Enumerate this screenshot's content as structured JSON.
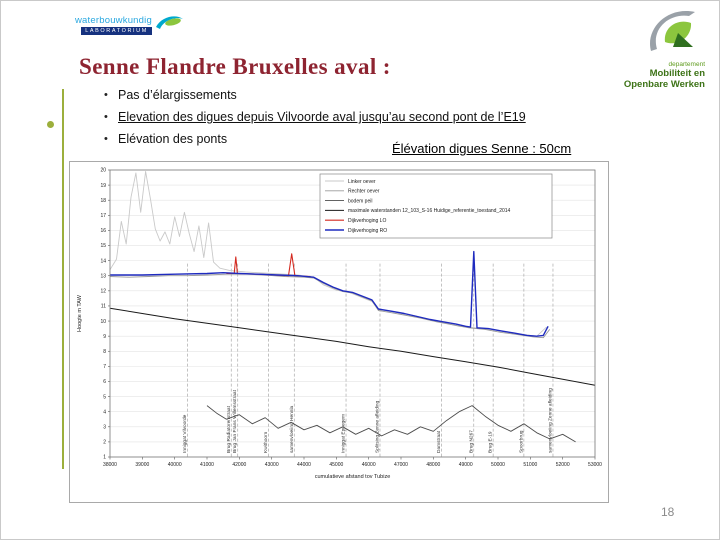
{
  "colors": {
    "title_color": "#8e2431",
    "accent_green": "#9caf3c",
    "logo_blue": "#29a8e0",
    "logo_navy": "#16327f",
    "mow_green": "#5f9b1e",
    "mow_green_dark": "#3d7317"
  },
  "logos": {
    "waterbouwkundig": {
      "line1": "waterbouwkundig",
      "line2": "LABORATORIUM"
    },
    "mow": {
      "line0": "departement",
      "line1": "Mobiliteit en",
      "line2": "Openbare Werken"
    }
  },
  "title": "Senne Flandre Bruxelles aval :",
  "bullets": [
    {
      "text": "Pas d’élargissements"
    },
    {
      "text": "Elevation des digues depuis Vilvoorde aval  jusqu’au second pont de l’E19"
    },
    {
      "text": "Elévation des ponts"
    }
  ],
  "chart_caption": "Élévation digues Senne : 50cm",
  "page_number": "18",
  "chart_data": {
    "type": "line",
    "title": "",
    "xlabel": "cumulatieve afstand tov Tubize",
    "ylabel": "Hoogte m TAW",
    "xlim": [
      38000,
      53000
    ],
    "ylim": [
      1,
      20
    ],
    "x_tick_step": 1000,
    "y_tick_step": 1,
    "grid": "horizontal",
    "legend_position": "top-center",
    "series": [
      {
        "name": "Linker oever",
        "color": "#c9c9c9",
        "width": 0.9,
        "points": [
          [
            38000,
            13.4
          ],
          [
            38200,
            14.1
          ],
          [
            38350,
            16.6
          ],
          [
            38500,
            15.1
          ],
          [
            38650,
            18.2
          ],
          [
            38800,
            19.8
          ],
          [
            38950,
            17.2
          ],
          [
            39100,
            19.9
          ],
          [
            39250,
            18.1
          ],
          [
            39400,
            16.1
          ],
          [
            39550,
            15.3
          ],
          [
            39700,
            15.9
          ],
          [
            39850,
            15.1
          ],
          [
            40000,
            16.9
          ],
          [
            40150,
            15.6
          ],
          [
            40300,
            17.2
          ],
          [
            40450,
            15.8
          ],
          [
            40600,
            14.6
          ],
          [
            40750,
            16.3
          ],
          [
            40900,
            14.2
          ],
          [
            41050,
            16.5
          ],
          [
            41200,
            13.9
          ],
          [
            41400,
            13.5
          ],
          [
            41700,
            13.35
          ],
          [
            42200,
            13.25
          ],
          [
            43000,
            13.15
          ],
          [
            43800,
            13.05
          ],
          [
            44300,
            12.9
          ],
          [
            44600,
            12.4
          ],
          [
            45000,
            12.05
          ],
          [
            45400,
            11.9
          ],
          [
            45800,
            11.55
          ],
          [
            46100,
            11.3
          ],
          [
            46300,
            10.75
          ],
          [
            46800,
            10.6
          ],
          [
            47300,
            10.4
          ],
          [
            47800,
            10.15
          ],
          [
            48300,
            9.9
          ],
          [
            48800,
            9.65
          ],
          [
            49300,
            9.55
          ],
          [
            49800,
            9.45
          ],
          [
            50300,
            9.25
          ],
          [
            50800,
            9.1
          ],
          [
            51200,
            9.0
          ],
          [
            51500,
            9.6
          ]
        ]
      },
      {
        "name": "Rechter oever",
        "color": "#9a9a9a",
        "width": 0.9,
        "points": [
          [
            38000,
            12.95
          ],
          [
            38600,
            12.9
          ],
          [
            39200,
            12.95
          ],
          [
            39800,
            13.0
          ],
          [
            40400,
            13.0
          ],
          [
            41000,
            13.05
          ],
          [
            41600,
            13.1
          ],
          [
            42200,
            13.1
          ],
          [
            42800,
            13.05
          ],
          [
            43400,
            12.95
          ],
          [
            44000,
            12.9
          ],
          [
            44300,
            12.85
          ],
          [
            44600,
            12.5
          ],
          [
            44900,
            12.2
          ],
          [
            45200,
            11.95
          ],
          [
            45500,
            11.85
          ],
          [
            45800,
            11.6
          ],
          [
            46100,
            11.35
          ],
          [
            46300,
            10.7
          ],
          [
            46700,
            10.55
          ],
          [
            47100,
            10.4
          ],
          [
            47600,
            10.2
          ],
          [
            48100,
            9.95
          ],
          [
            48600,
            9.75
          ],
          [
            49100,
            9.55
          ],
          [
            49600,
            9.45
          ],
          [
            50100,
            9.25
          ],
          [
            50600,
            9.1
          ],
          [
            51100,
            8.95
          ],
          [
            51400,
            8.9
          ],
          [
            51600,
            9.45
          ]
        ]
      },
      {
        "name": "bodem peil",
        "color": "#4d4d4d",
        "width": 0.9,
        "points": [
          [
            41000,
            4.4
          ],
          [
            41300,
            3.9
          ],
          [
            41600,
            3.5
          ],
          [
            42000,
            3.8
          ],
          [
            42400,
            3.2
          ],
          [
            42800,
            3.6
          ],
          [
            43200,
            2.9
          ],
          [
            43600,
            3.3
          ],
          [
            44000,
            2.8
          ],
          [
            44400,
            3.1
          ],
          [
            44800,
            2.6
          ],
          [
            45200,
            3.0
          ],
          [
            45600,
            2.5
          ],
          [
            46000,
            2.9
          ],
          [
            46400,
            2.4
          ],
          [
            46800,
            2.8
          ],
          [
            47200,
            2.5
          ],
          [
            47600,
            3.0
          ],
          [
            48000,
            2.7
          ],
          [
            48400,
            3.4
          ],
          [
            48800,
            4.0
          ],
          [
            49200,
            4.4
          ],
          [
            49600,
            3.7
          ],
          [
            50000,
            3.1
          ],
          [
            50400,
            2.7
          ],
          [
            50800,
            3.2
          ],
          [
            51200,
            2.6
          ],
          [
            51600,
            2.2
          ],
          [
            52000,
            2.5
          ],
          [
            52400,
            2.0
          ]
        ]
      },
      {
        "name": "maximale waterstanden 12_103_S-16 Huidige_referentie_toestand_2014",
        "color": "#1a1a1a",
        "width": 1.0,
        "points": [
          [
            38000,
            10.85
          ],
          [
            39000,
            10.5
          ],
          [
            40000,
            10.15
          ],
          [
            41000,
            9.85
          ],
          [
            42000,
            9.55
          ],
          [
            43000,
            9.25
          ],
          [
            44000,
            8.95
          ],
          [
            45000,
            8.65
          ],
          [
            46000,
            8.3
          ],
          [
            47000,
            8.0
          ],
          [
            48000,
            7.65
          ],
          [
            49000,
            7.3
          ],
          [
            50000,
            6.95
          ],
          [
            51000,
            6.55
          ],
          [
            52000,
            6.15
          ],
          [
            53000,
            5.75
          ]
        ]
      },
      {
        "name": "Dijkverhoging LO",
        "color": "#d42a20",
        "width": 1.1,
        "points": [
          [
            41600,
            13.15
          ],
          [
            41840,
            13.15
          ],
          [
            41890,
            14.25
          ],
          [
            41940,
            13.15
          ],
          [
            42600,
            13.1
          ],
          [
            43520,
            13.0
          ],
          [
            43620,
            14.45
          ],
          [
            43720,
            13.0
          ],
          [
            44200,
            12.95
          ]
        ]
      },
      {
        "name": "Dijkverhoging RO",
        "color": "#1f2bbf",
        "width": 1.4,
        "points": [
          [
            38000,
            13.05
          ],
          [
            39000,
            13.05
          ],
          [
            40000,
            13.1
          ],
          [
            41000,
            13.15
          ],
          [
            41500,
            13.2
          ],
          [
            42000,
            13.15
          ],
          [
            42600,
            13.1
          ],
          [
            43200,
            13.05
          ],
          [
            43800,
            13.0
          ],
          [
            44300,
            12.9
          ],
          [
            44600,
            12.55
          ],
          [
            44900,
            12.25
          ],
          [
            45200,
            12.0
          ],
          [
            45500,
            11.9
          ],
          [
            45800,
            11.65
          ],
          [
            46100,
            11.4
          ],
          [
            46300,
            10.8
          ],
          [
            46700,
            10.65
          ],
          [
            47100,
            10.5
          ],
          [
            47500,
            10.3
          ],
          [
            47900,
            10.1
          ],
          [
            48300,
            9.95
          ],
          [
            48700,
            9.8
          ],
          [
            49000,
            9.65
          ],
          [
            49150,
            9.6
          ],
          [
            49250,
            14.6
          ],
          [
            49350,
            9.55
          ],
          [
            49700,
            9.5
          ],
          [
            50100,
            9.35
          ],
          [
            50500,
            9.2
          ],
          [
            50900,
            9.05
          ],
          [
            51200,
            9.0
          ],
          [
            51400,
            9.05
          ],
          [
            51550,
            9.65
          ]
        ]
      }
    ],
    "landmarks": [
      {
        "x": 40400,
        "label": "Inniggat Vilvoorde"
      },
      {
        "x": 41750,
        "label": "Brug Radiatorenstraat"
      },
      {
        "x": 41950,
        "label": "Brug Jan Frans Willemsstraat"
      },
      {
        "x": 42900,
        "label": "Kwithoorn"
      },
      {
        "x": 43700,
        "label": "samenvloeiing Hennla"
      },
      {
        "x": 45300,
        "label": "Inniggat Eppegem"
      },
      {
        "x": 46350,
        "label": "Splitsing Zenne afleiding"
      },
      {
        "x": 48250,
        "label": "Damstraat"
      },
      {
        "x": 49250,
        "label": "Brug N267"
      },
      {
        "x": 49850,
        "label": "Brug E-19"
      },
      {
        "x": 50800,
        "label": "Spoorbrug"
      },
      {
        "x": 51700,
        "label": "samenvloeiing Zenne afleiding"
      }
    ]
  }
}
